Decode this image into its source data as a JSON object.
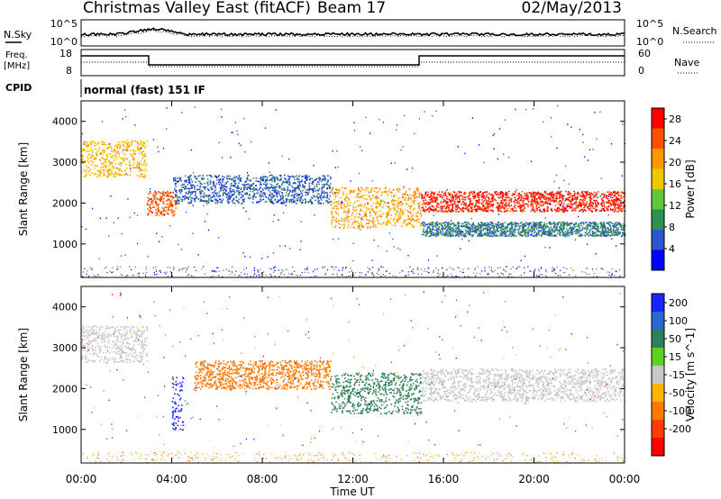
{
  "header": {
    "title": "Christmas Valley East (fitACF)",
    "beam": "Beam 17",
    "date": "02/May/2013"
  },
  "strip": {
    "nsky_label": "N.Sky",
    "nsearch_label": "N.Search",
    "nsky_ticks": [
      "10^5",
      "10^0"
    ],
    "nsearch_ticks": [
      "10^5",
      "10^0"
    ],
    "freq_label": "Freq.",
    "freq_unit": "[MHz]",
    "freq_ticks": [
      "18",
      "8"
    ],
    "nave_label": "Nave",
    "nave_ticks": [
      "60",
      "0"
    ],
    "cpid_label": "CPID",
    "cpid_value": "normal (fast) 151 IF"
  },
  "colors": {
    "power_scale": [
      "#0000ff",
      "#2b55c8",
      "#2f8f55",
      "#5fc83c",
      "#f0c800",
      "#ff9600",
      "#ff5000",
      "#ff0000"
    ],
    "velocity_scale": [
      "#1a24ff",
      "#2a6ad0",
      "#2e7f5a",
      "#5ad21e",
      "#c8c8c8",
      "#ffb400",
      "#ff7800",
      "#ff3c00",
      "#ff0000"
    ]
  },
  "chart_data": [
    {
      "type": "heatmap",
      "panel": "power",
      "ylabel": "Slant Range [km]",
      "xlabel": "Time UT",
      "x_ticks": [
        "00:00",
        "04:00",
        "08:00",
        "12:00",
        "16:00",
        "20:00",
        "00:00"
      ],
      "y_ticks": [
        1000,
        2000,
        3000,
        4000
      ],
      "x_range_hours": [
        0,
        24
      ],
      "ylim": [
        180,
        4500
      ],
      "colorbar_label": "Power [dB]",
      "colorbar_ticks": [
        4,
        8,
        12,
        16,
        20,
        24,
        28
      ],
      "colorbar_range": [
        0,
        30
      ],
      "bands": [
        {
          "t": [
            0.0,
            2.9
          ],
          "range": [
            2650,
            3550
          ],
          "value": 18
        },
        {
          "t": [
            2.9,
            4.2
          ],
          "range": [
            1700,
            2300
          ],
          "value": 24
        },
        {
          "t": [
            4.0,
            11.0
          ],
          "range": [
            2000,
            2700
          ],
          "value": 6
        },
        {
          "t": [
            11.0,
            15.0
          ],
          "range": [
            1400,
            2400
          ],
          "value": 20
        },
        {
          "t": [
            15.0,
            24.0
          ],
          "range": [
            1800,
            2300
          ],
          "value": 27
        },
        {
          "t": [
            15.0,
            24.0
          ],
          "range": [
            1200,
            1550
          ],
          "value": 8
        }
      ]
    },
    {
      "type": "heatmap",
      "panel": "velocity",
      "ylabel": "Slant Range [km]",
      "xlabel": "Time UT",
      "x_ticks": [
        "00:00",
        "04:00",
        "08:00",
        "12:00",
        "16:00",
        "20:00",
        "00:00"
      ],
      "y_ticks": [
        1000,
        2000,
        3000,
        4000
      ],
      "x_range_hours": [
        0,
        24
      ],
      "ylim": [
        180,
        4500
      ],
      "colorbar_label": "Velocity [m s^-1]",
      "colorbar_ticks": [
        200,
        100,
        50,
        15,
        -15,
        -50,
        -100,
        -200
      ],
      "colorbar_range": [
        -250,
        250
      ],
      "bands": [
        {
          "t": [
            0.0,
            2.9
          ],
          "range": [
            2650,
            3550
          ],
          "value": 0
        },
        {
          "t": [
            4.0,
            4.5
          ],
          "range": [
            1000,
            2300
          ],
          "value": 220
        },
        {
          "t": [
            5.0,
            11.0
          ],
          "range": [
            2000,
            2700
          ],
          "value": -60
        },
        {
          "t": [
            11.0,
            15.0
          ],
          "range": [
            1400,
            2400
          ],
          "value": 40
        },
        {
          "t": [
            15.0,
            24.0
          ],
          "range": [
            1700,
            2500
          ],
          "value": 0
        }
      ]
    }
  ]
}
